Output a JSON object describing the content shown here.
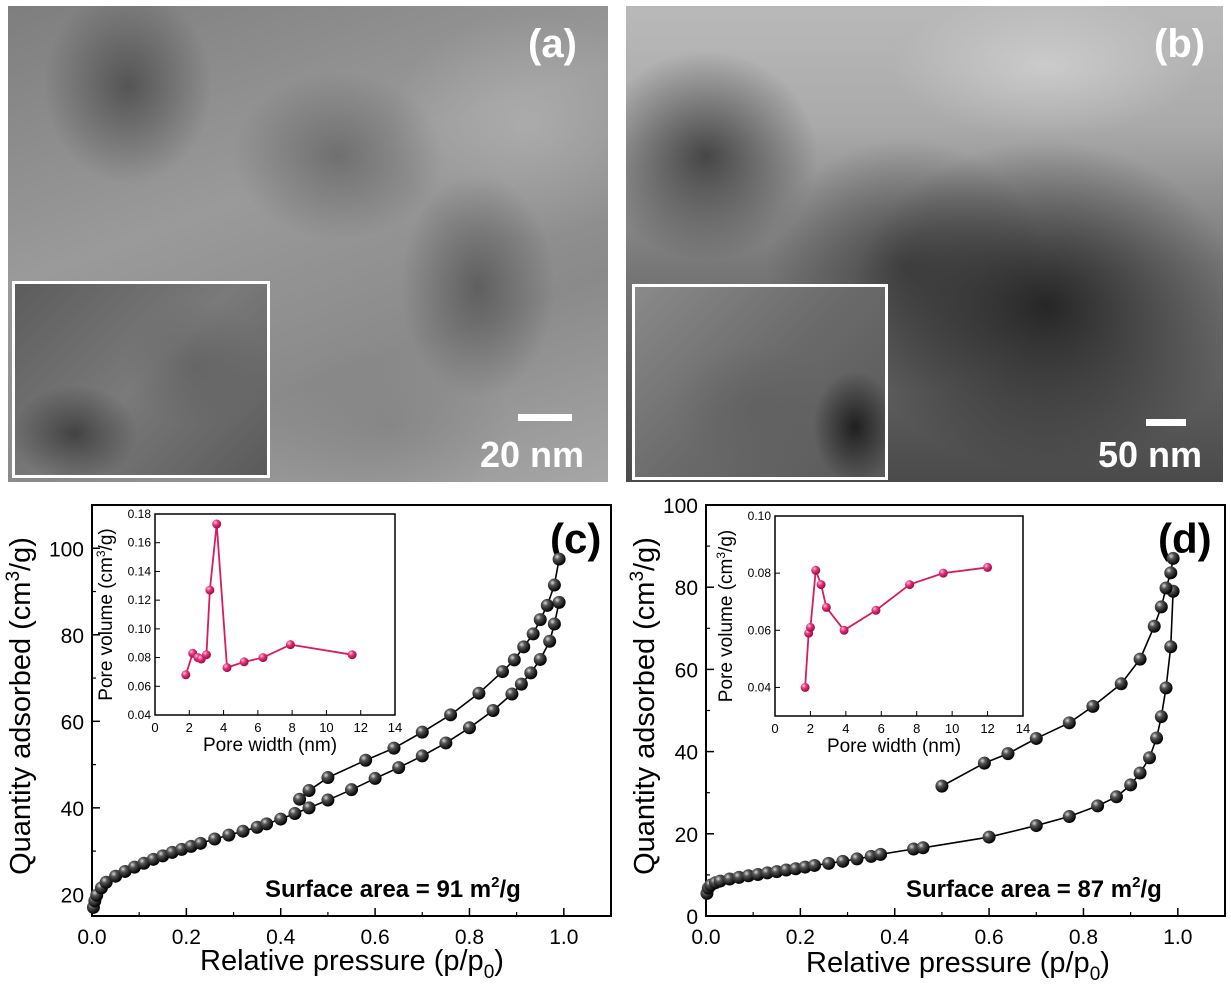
{
  "panels": {
    "a": {
      "label": "(a)",
      "scale": "20 nm"
    },
    "b": {
      "label": "(b)",
      "scale": "50 nm"
    }
  },
  "colors": {
    "isotherm_marker": "#1a1a1a",
    "psd_series": "#d81b60",
    "image_label": "#ffffff"
  },
  "icons": {
    "sphere_marker": "black-sphere-marker"
  },
  "chart_data": [
    {
      "id": "c",
      "type": "scatter",
      "panel_label": "(c)",
      "xlabel": "Relative pressure (p/p0)",
      "xlabel_main": "Relative pressure (p/p",
      "xlabel_sub": "0",
      "xlabel_tail": ")",
      "ylabel": "Quantity adsorbed (cm3/g)",
      "annotation": "Surface area = 91 m2/g",
      "xlim": [
        0,
        1.1
      ],
      "ylim": [
        15,
        110
      ],
      "xticks": [
        "0.0",
        "0.2",
        "0.4",
        "0.6",
        "0.8",
        "1.0"
      ],
      "yticks": [
        "20",
        "40",
        "60",
        "80",
        "100"
      ],
      "series": [
        {
          "x": [
            0.003,
            0.006,
            0.01,
            0.02,
            0.03,
            0.05,
            0.07,
            0.09,
            0.11,
            0.13,
            0.15,
            0.17,
            0.19,
            0.21,
            0.23,
            0.26,
            0.29,
            0.32,
            0.35,
            0.37,
            0.4,
            0.43,
            0.46,
            0.5,
            0.55,
            0.6,
            0.65,
            0.7,
            0.75,
            0.8,
            0.85,
            0.89,
            0.91,
            0.93,
            0.95,
            0.97,
            0.98,
            0.99
          ],
          "y": [
            17,
            18.5,
            19.8,
            21.5,
            22.8,
            24.2,
            25.3,
            26.3,
            27.2,
            28.1,
            28.9,
            29.7,
            30.4,
            31.1,
            31.8,
            32.8,
            33.7,
            34.6,
            35.5,
            36.3,
            37.4,
            38.7,
            40.0,
            41.8,
            44.2,
            46.8,
            49.3,
            52.0,
            55.0,
            58.5,
            62.5,
            66.3,
            68.6,
            71.2,
            74.3,
            78.5,
            82.5,
            87.5
          ]
        },
        {
          "x": [
            0.99,
            0.98,
            0.965,
            0.95,
            0.935,
            0.915,
            0.895,
            0.87,
            0.82,
            0.76,
            0.7,
            0.64,
            0.58,
            0.5,
            0.46,
            0.44
          ],
          "y": [
            97.5,
            91.5,
            86.8,
            83.5,
            80.2,
            77.2,
            74.2,
            71.5,
            66.5,
            61.5,
            57.5,
            53.8,
            51.0,
            47.0,
            44.0,
            42.0
          ]
        }
      ],
      "inset": {
        "type": "line",
        "xlabel": "Pore width (nm)",
        "ylabel": "Pore volume (cm3/g)",
        "xlim": [
          0,
          14
        ],
        "ylim": [
          0.04,
          0.18
        ],
        "xticks": [
          "0",
          "2",
          "4",
          "6",
          "8",
          "10",
          "12",
          "14"
        ],
        "yticks": [
          "0.04",
          "0.06",
          "0.08",
          "0.10",
          "0.12",
          "0.14",
          "0.16",
          "0.18"
        ],
        "x": [
          1.8,
          2.2,
          2.5,
          2.7,
          3.0,
          3.2,
          3.6,
          4.2,
          5.2,
          6.3,
          7.9,
          11.5
        ],
        "y": [
          0.068,
          0.083,
          0.08,
          0.079,
          0.082,
          0.127,
          0.173,
          0.073,
          0.077,
          0.08,
          0.089,
          0.082
        ]
      }
    },
    {
      "id": "d",
      "type": "scatter",
      "panel_label": "(d)",
      "xlabel": "Relative pressure (p/p0)",
      "xlabel_main": "Relative pressure (p/p",
      "xlabel_sub": "0",
      "xlabel_tail": ")",
      "ylabel": "Quantity adsorbed (cm3/g)",
      "annotation": "Surface area = 87 m2/g",
      "xlim": [
        0,
        1.1
      ],
      "ylim": [
        0,
        100
      ],
      "xticks": [
        "0.0",
        "0.2",
        "0.4",
        "0.6",
        "0.8",
        "1.0"
      ],
      "yticks": [
        "0",
        "20",
        "40",
        "60",
        "80",
        "100"
      ],
      "series": [
        {
          "x": [
            0.002,
            0.005,
            0.01,
            0.02,
            0.03,
            0.05,
            0.07,
            0.09,
            0.11,
            0.13,
            0.15,
            0.17,
            0.19,
            0.21,
            0.23,
            0.26,
            0.29,
            0.32,
            0.35,
            0.37,
            0.44,
            0.46,
            0.6,
            0.7,
            0.77,
            0.83,
            0.87,
            0.9,
            0.92,
            0.94,
            0.955,
            0.965,
            0.975,
            0.985,
            0.99
          ],
          "y": [
            5.5,
            6.8,
            7.5,
            8.1,
            8.5,
            9.0,
            9.4,
            9.8,
            10.1,
            10.5,
            10.8,
            11.2,
            11.5,
            11.9,
            12.3,
            12.8,
            13.3,
            13.9,
            14.5,
            15.0,
            16.3,
            16.6,
            19.2,
            22.0,
            24.2,
            26.8,
            29.0,
            31.9,
            34.8,
            38.5,
            43.3,
            48.5,
            55.5,
            65.5,
            79.0
          ]
        },
        {
          "x": [
            0.99,
            0.985,
            0.975,
            0.965,
            0.95,
            0.92,
            0.88,
            0.82,
            0.77,
            0.7,
            0.64,
            0.59,
            0.5
          ],
          "y": [
            87.0,
            83.5,
            79.8,
            75.2,
            70.5,
            62.5,
            56.5,
            51.0,
            47.0,
            43.2,
            39.5,
            37.2,
            31.6
          ]
        }
      ],
      "inset": {
        "type": "line",
        "xlabel": "Pore width (nm)",
        "ylabel": "Pore volume (cm3/g)",
        "xlim": [
          0,
          14
        ],
        "ylim": [
          0.03,
          0.1
        ],
        "xticks": [
          "0",
          "2",
          "4",
          "6",
          "8",
          "10",
          "12",
          "14"
        ],
        "yticks": [
          "0.04",
          "0.06",
          "0.08",
          "0.10"
        ],
        "x": [
          1.7,
          1.9,
          2.0,
          2.3,
          2.6,
          2.9,
          3.9,
          5.7,
          7.6,
          9.5,
          12.0
        ],
        "y": [
          0.04,
          0.059,
          0.061,
          0.081,
          0.076,
          0.068,
          0.06,
          0.067,
          0.076,
          0.08,
          0.082
        ]
      }
    }
  ]
}
